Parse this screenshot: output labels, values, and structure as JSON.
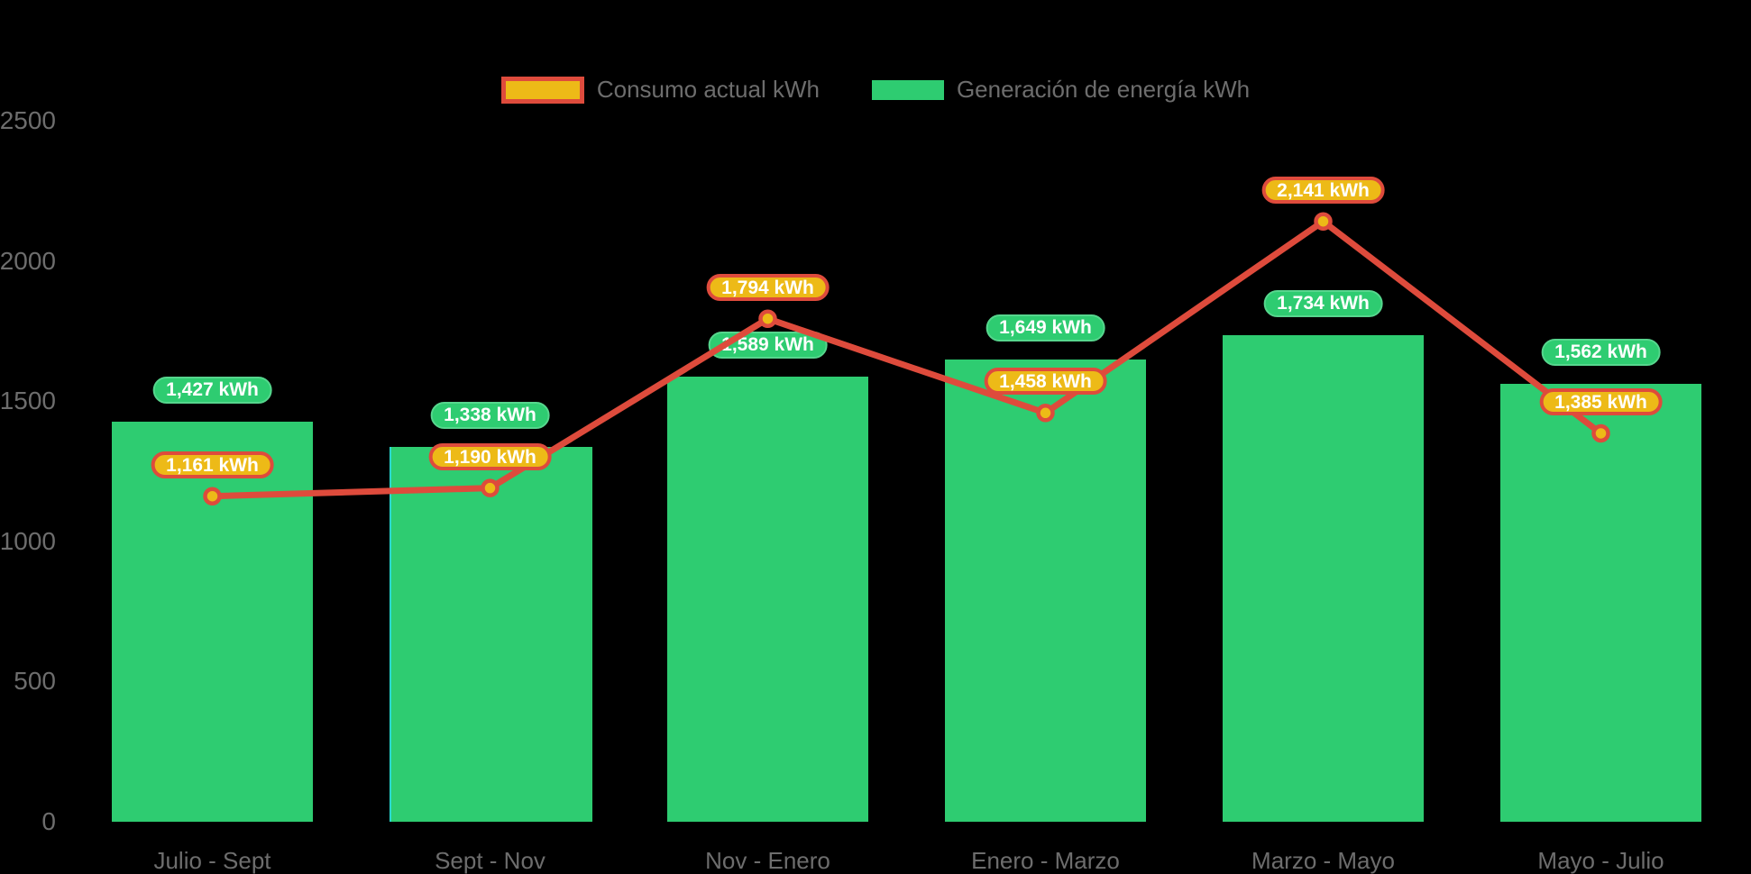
{
  "legend": {
    "items": [
      {
        "label": "Consumo actual kWh",
        "swatch": "gold-red-border"
      },
      {
        "label": "Generación de energía kWh",
        "swatch": "green"
      }
    ]
  },
  "y_axis": {
    "tick_labels": [
      "0",
      "500",
      "1000",
      "1500",
      "2000",
      "2500"
    ]
  },
  "chart_data": {
    "type": "combo",
    "subtypes": [
      "line",
      "bar"
    ],
    "categories": [
      "Julio - Sept",
      "Sept - Nov",
      "Nov - Enero",
      "Enero - Marzo",
      "Marzo - Mayo",
      "Mayo - Julio"
    ],
    "series": [
      {
        "name": "Consumo actual kWh",
        "type": "line",
        "color": "#de4b3c",
        "marker_fill": "#edba17",
        "values": [
          1161,
          1190,
          1794,
          1458,
          2141,
          1385
        ],
        "labels": [
          "1,161 kWh",
          "1,190 kWh",
          "1,794 kWh",
          "1,458 kWh",
          "2,141 kWh",
          "1,385 kWh"
        ]
      },
      {
        "name": "Generación de energía kWh",
        "type": "bar",
        "color": "#2ecc71",
        "values": [
          1427,
          1338,
          1589,
          1649,
          1734,
          1562
        ],
        "labels": [
          "1,427 kWh",
          "1,338 kWh",
          "1,589 kWh",
          "1,649 kWh",
          "1,734 kWh",
          "1,562 kWh"
        ]
      }
    ],
    "ylabel": "",
    "xlabel": "",
    "title": "",
    "ylim": [
      0,
      2500
    ],
    "y_tick_step": 500,
    "grid": false,
    "legend_position": "top-center",
    "background": "#000000"
  },
  "colors": {
    "background": "#000000",
    "bar_green": "#2ecc71",
    "bar_label_border": "#56d68d",
    "line_red": "#de4b3c",
    "gold": "#edba17",
    "axis_text": "#6d6d6d",
    "pill_text": "#ffffff",
    "bar2_left_edge_accent": "#2ad8cf"
  }
}
